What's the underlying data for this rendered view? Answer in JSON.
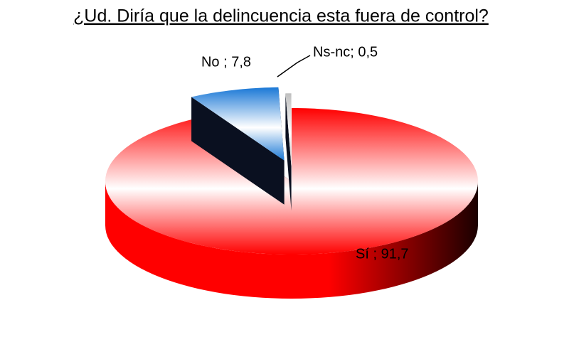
{
  "chart_data": {
    "type": "pie3d",
    "title": "¿Ud. Diría que la delincuencia esta fuera de control?",
    "values": [
      91.7,
      7.8,
      0.5
    ],
    "value_labels": [
      "Sí ; 91,7",
      "No ; 7,8",
      "Ns-nc; 0,5"
    ],
    "colors": [
      "#ff0000",
      "#1a78d6",
      "#bfbfbf"
    ]
  }
}
